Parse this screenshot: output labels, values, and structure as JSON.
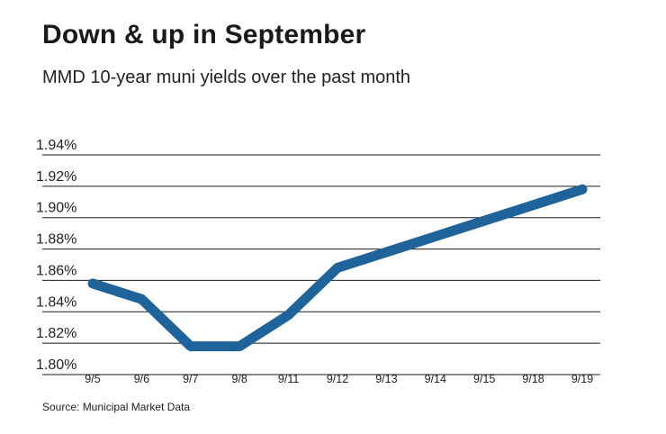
{
  "header": {
    "title": "Down & up in September",
    "subtitle": "MMD 10-year muni yields over the past month"
  },
  "footer": {
    "source": "Source: Municipal Market Data"
  },
  "chart_data": {
    "type": "line",
    "title": "Down & up in September",
    "subtitle": "MMD 10-year muni yields over the past month",
    "xlabel": "",
    "ylabel": "",
    "categories": [
      "9/5",
      "9/6",
      "9/7",
      "9/8",
      "9/11",
      "9/12",
      "9/13",
      "9/14",
      "9/15",
      "9/18",
      "9/19"
    ],
    "series": [
      {
        "values": [
          1.85,
          1.84,
          1.81,
          1.81,
          1.83,
          1.86,
          1.87,
          1.88,
          1.89,
          1.9,
          1.91
        ]
      }
    ],
    "ylim": [
      1.8,
      1.94
    ],
    "yticks": [
      1.8,
      1.82,
      1.84,
      1.86,
      1.88,
      1.9,
      1.92,
      1.94
    ],
    "ytick_labels": [
      "1.80%",
      "1.82%",
      "1.84%",
      "1.86%",
      "1.88%",
      "1.90%",
      "1.92%",
      "1.94%"
    ],
    "grid": true,
    "legend": "none",
    "colors": {
      "line": "#1e639a",
      "grid": "#1a1a1a"
    }
  }
}
